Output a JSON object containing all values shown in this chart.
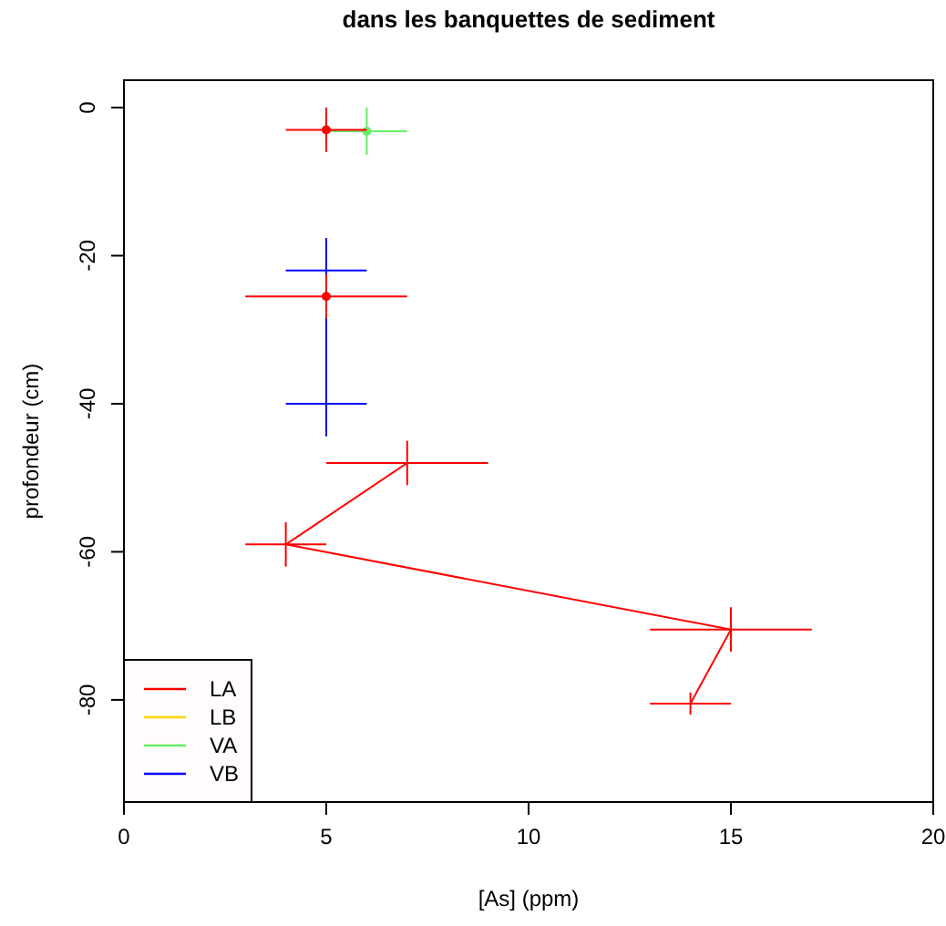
{
  "chart_data": {
    "type": "line",
    "title": "dans les banquettes de sediment",
    "xlabel": "[As] (ppm)",
    "ylabel": "profondeur (cm)",
    "xlim": [
      0,
      20
    ],
    "xticks": [
      0,
      5,
      10,
      15,
      20
    ],
    "ylim": [
      -93.8,
      3.7
    ],
    "yticks": [
      0,
      -20,
      -40,
      -60,
      -80
    ],
    "marker": "none",
    "line_style": "solid",
    "legend": "bottom left",
    "grid": false,
    "series": [
      {
        "name": "LA",
        "color": "#ff0000",
        "x": [
          7,
          4,
          15,
          14
        ],
        "values": [
          -48,
          -59,
          -70.5,
          -80.5
        ],
        "xerrors": [
          2,
          1,
          2,
          1
        ],
        "errors": [
          3,
          3,
          3,
          1.5
        ]
      },
      {
        "type": "scatter",
        "marker": "circle",
        "color": "#ff0000",
        "x": [
          5,
          5
        ],
        "values": [
          -3,
          -25.5
        ],
        "xerrors": [
          1,
          2
        ],
        "errors": [
          3,
          3
        ]
      },
      {
        "name": "LB",
        "color": "#ffd700"
      },
      {
        "name": "VA",
        "type": "scatter",
        "marker": "circle",
        "color": "#66ee66",
        "x": [
          6
        ],
        "values": [
          -3.2
        ],
        "xerrors": [
          1
        ],
        "errors": [
          3.2
        ]
      },
      {
        "name": "VB",
        "color": "#0000ff",
        "x": [
          5,
          5
        ],
        "values": [
          -22,
          -40
        ],
        "xerrors": [
          1,
          1
        ],
        "errors": [
          4.4,
          4.4
        ]
      }
    ]
  }
}
